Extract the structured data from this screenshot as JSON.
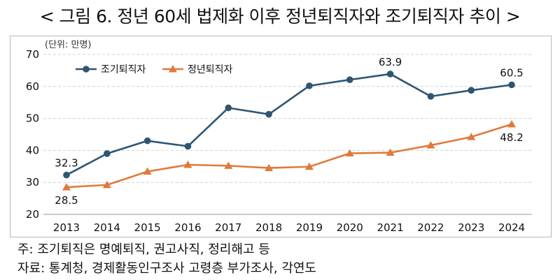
{
  "title": "< 그림 6. 정년 60세 법제화 이후 정년퇴직자와 조기퇴직자 추이 >",
  "notes": [
    "주: 조기퇴직은 명예퇴직, 권고사직, 정리해고 등",
    "자료: 통계청, 경제활동인구조사 고령층 부가조사, 각연도"
  ],
  "colors": {
    "early": "#2e5672",
    "retire": "#e07a3a",
    "grid": "#cfcfcf"
  },
  "chart_data": {
    "type": "line",
    "unit_label": "(단위: 만명)",
    "categories": [
      "2013",
      "2014",
      "2015",
      "2016",
      "2017",
      "2018",
      "2019",
      "2020",
      "2021",
      "2022",
      "2023",
      "2024"
    ],
    "ylim": [
      20,
      70
    ],
    "yticks": [
      20,
      30,
      40,
      50,
      60,
      70
    ],
    "grid": true,
    "legend_position": "top-left",
    "series": [
      {
        "name": "조기퇴직자",
        "marker": "circle",
        "values": [
          32.3,
          39.0,
          43.0,
          41.3,
          53.3,
          51.3,
          60.2,
          62.1,
          63.9,
          56.9,
          58.8,
          60.5
        ]
      },
      {
        "name": "정년퇴직자",
        "marker": "triangle",
        "values": [
          28.5,
          29.2,
          33.4,
          35.5,
          35.2,
          34.5,
          34.9,
          39.1,
          39.3,
          41.6,
          44.2,
          48.2
        ]
      }
    ],
    "annotations": [
      {
        "series": 0,
        "index": 0,
        "text": "32.3",
        "pos": "above"
      },
      {
        "series": 0,
        "index": 8,
        "text": "63.9",
        "pos": "above"
      },
      {
        "series": 0,
        "index": 11,
        "text": "60.5",
        "pos": "above"
      },
      {
        "series": 1,
        "index": 0,
        "text": "28.5",
        "pos": "below"
      },
      {
        "series": 1,
        "index": 11,
        "text": "48.2",
        "pos": "below"
      }
    ]
  }
}
